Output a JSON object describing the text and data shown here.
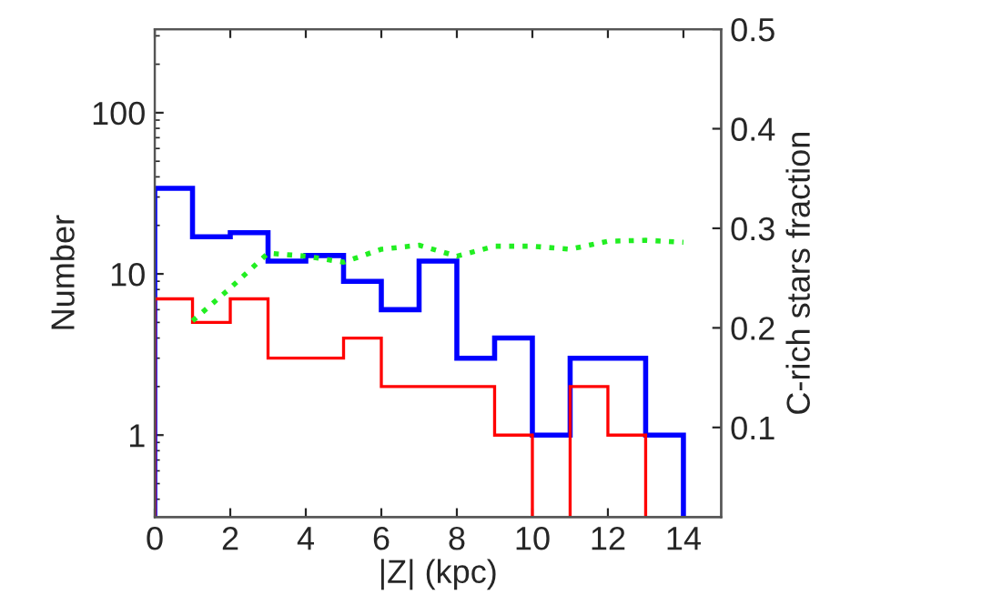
{
  "chart_data": {
    "type": "histogram",
    "xlabel": "|Z| (kpc)",
    "ylabel": "Number",
    "y2label": "C-rich stars fraction",
    "bins": [
      0,
      1,
      2,
      3,
      4,
      5,
      6,
      7,
      8,
      9,
      10,
      11,
      12,
      13,
      14
    ],
    "series": [
      {
        "color": "#0000ff",
        "values": [
          34,
          17,
          18,
          12,
          13,
          9,
          6,
          12,
          3,
          4,
          1,
          3,
          3,
          1
        ]
      },
      {
        "color": "#ff0000",
        "bins": [
          0,
          1,
          2,
          3,
          4,
          5,
          6,
          7,
          8,
          9,
          10,
          11,
          12,
          13
        ],
        "values": [
          7,
          5,
          7,
          3,
          3,
          4,
          2,
          2,
          2,
          1,
          null,
          2,
          1
        ]
      },
      {
        "type": "line",
        "axis": "y2",
        "color": "#22ee22",
        "line_style": "dotted",
        "x": [
          1,
          2,
          3,
          4,
          5,
          6,
          7,
          8,
          9,
          10,
          11,
          12,
          13,
          14
        ],
        "values": [
          0.207,
          0.24,
          0.275,
          0.272,
          0.266,
          0.279,
          0.283,
          0.272,
          0.282,
          0.282,
          0.279,
          0.287,
          0.288,
          0.286
        ]
      }
    ],
    "xlim": [
      0,
      15
    ],
    "xticks": [
      0,
      2,
      4,
      6,
      8,
      10,
      12,
      14
    ],
    "ylim": [
      0.31,
      330
    ],
    "yticks": [
      1,
      10,
      100
    ],
    "log": "y",
    "y2lim": [
      0.01,
      0.5
    ],
    "y2ticks": [
      0.1,
      0.2,
      0.3,
      0.4,
      0.5
    ],
    "grid": false,
    "legend": false
  }
}
